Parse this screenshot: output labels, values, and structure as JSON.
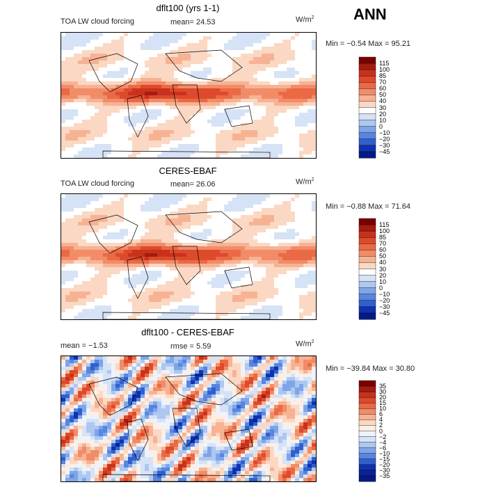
{
  "season": "ANN",
  "panels": [
    {
      "title": "dflt100 (yrs 1-1)",
      "left_label": "TOA LW cloud forcing",
      "stat1": "mean=  24.53",
      "stat2": "",
      "units": "W/m",
      "units_sup": "2",
      "minmax": "Min =  −0.54  Max =  95.21"
    },
    {
      "title": "CERES-EBAF",
      "left_label": "TOA LW cloud forcing",
      "stat1": "mean=  26.06",
      "stat2": "",
      "units": "W/m",
      "units_sup": "2",
      "minmax": "Min =  −0.88  Max =  71.64"
    },
    {
      "title": "dflt100 - CERES-EBAF",
      "left_label": "mean =   −1.53",
      "stat1": "rmse =   5.59",
      "stat2": "",
      "units": "W/m",
      "units_sup": "2",
      "minmax": "Min = −39.84  Max =  30.80"
    }
  ],
  "chart_data": [
    {
      "type": "heatmap",
      "title": "dflt100 (yrs 1-1)",
      "mean": 24.53,
      "min": -0.54,
      "max": 95.21,
      "units": "W/m2",
      "colorbar_levels": [
        "115",
        "100",
        "85",
        "70",
        "60",
        "50",
        "40",
        "30",
        "20",
        "10",
        "0",
        "−10",
        "−20",
        "−30",
        "−45"
      ],
      "colorbar_colors": [
        "#7a0000",
        "#a51b10",
        "#c8321d",
        "#dd4a2c",
        "#ea6a45",
        "#f28c68",
        "#f7b294",
        "#fbd8c3",
        "#ffffff",
        "#d6e3f6",
        "#adc7f0",
        "#7fa5e8",
        "#5a85dd",
        "#3060cf",
        "#1131b0",
        "#061a85"
      ]
    },
    {
      "type": "heatmap",
      "title": "CERES-EBAF",
      "mean": 26.06,
      "min": -0.88,
      "max": 71.64,
      "units": "W/m2",
      "colorbar_levels": [
        "115",
        "100",
        "85",
        "70",
        "60",
        "50",
        "40",
        "30",
        "20",
        "10",
        "0",
        "−10",
        "−20",
        "−30",
        "−45"
      ],
      "colorbar_colors": [
        "#7a0000",
        "#a51b10",
        "#c8321d",
        "#dd4a2c",
        "#ea6a45",
        "#f28c68",
        "#f7b294",
        "#fbd8c3",
        "#ffffff",
        "#d6e3f6",
        "#adc7f0",
        "#7fa5e8",
        "#5a85dd",
        "#3060cf",
        "#1131b0",
        "#061a85"
      ]
    },
    {
      "type": "heatmap",
      "title": "dflt100 - CERES-EBAF",
      "mean": -1.53,
      "rmse": 5.59,
      "min": -39.84,
      "max": 30.8,
      "units": "W/m2",
      "colorbar_levels": [
        "35",
        "30",
        "20",
        "15",
        "10",
        "6",
        "4",
        "2",
        "0",
        "−2",
        "−4",
        "−6",
        "−10",
        "−15",
        "−20",
        "−30",
        "−35"
      ],
      "colorbar_colors": [
        "#7a0000",
        "#a51b10",
        "#c8321d",
        "#dd4a2c",
        "#ea6a45",
        "#f28c68",
        "#f7b294",
        "#fbd8c3",
        "#fdeee4",
        "#eef3fb",
        "#d6e3f6",
        "#adc7f0",
        "#7fa5e8",
        "#5a85dd",
        "#3060cf",
        "#1131b0",
        "#0a2395",
        "#061a85"
      ]
    }
  ]
}
